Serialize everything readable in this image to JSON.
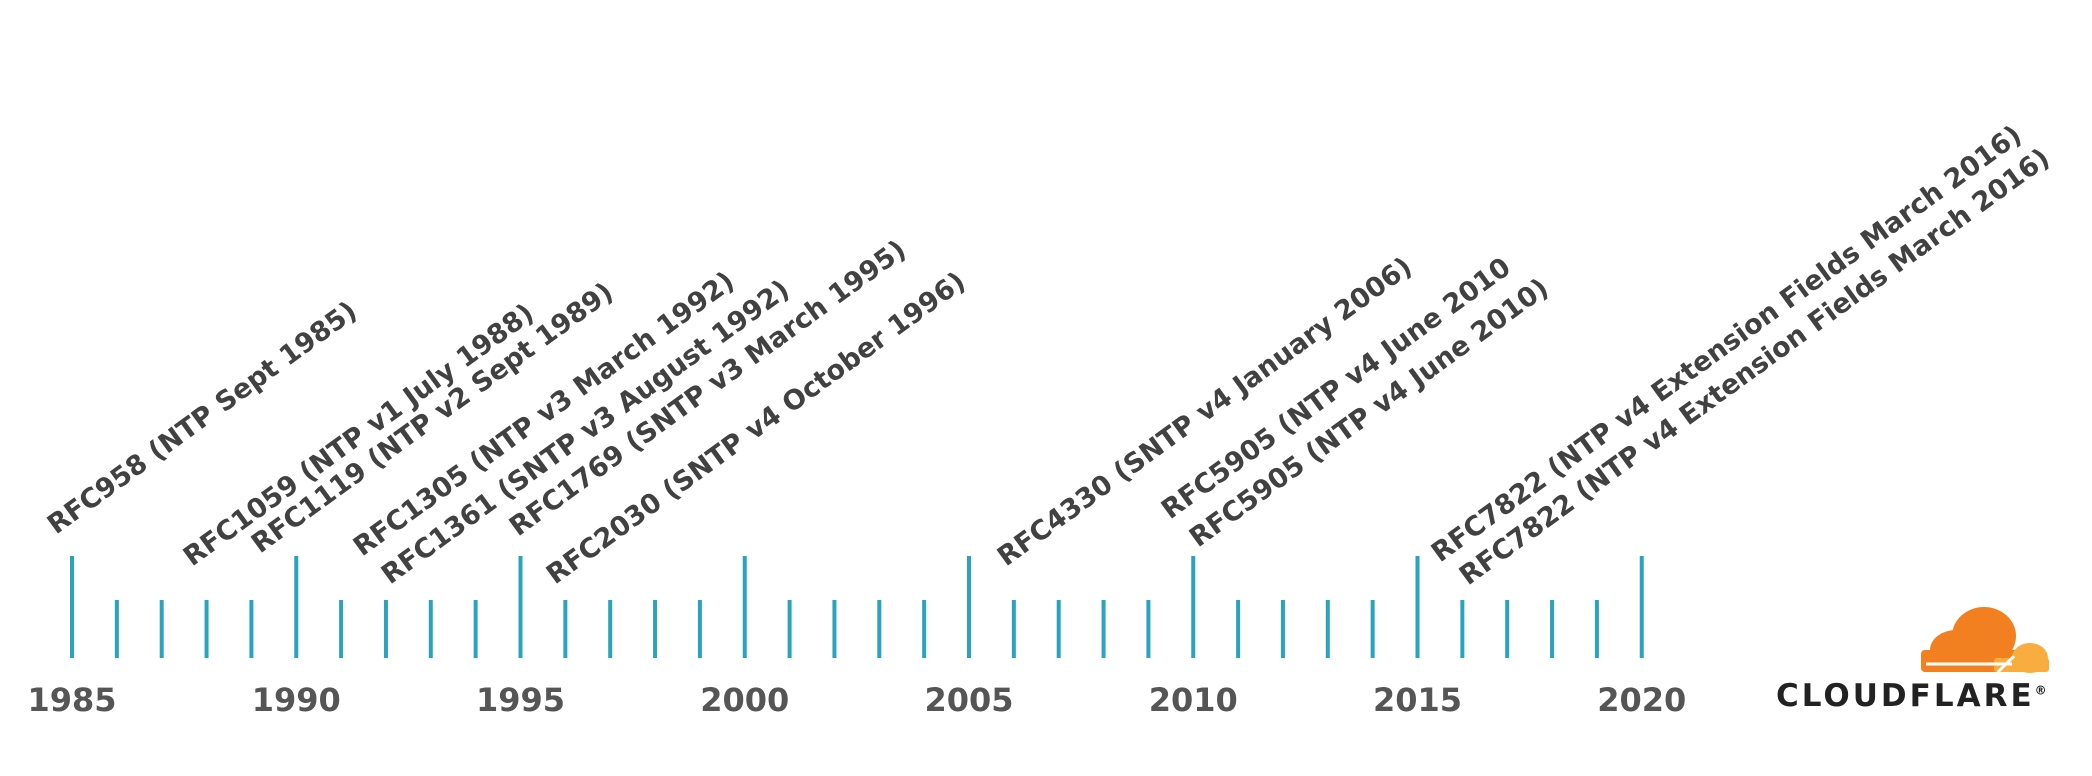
{
  "timeline": {
    "start_year": 1985,
    "end_year": 2020,
    "major_tick_every": 5,
    "year_labels": [
      "1985",
      "1990",
      "1995",
      "2000",
      "2005",
      "2010",
      "2015",
      "2020"
    ],
    "events": [
      {
        "year": 1985,
        "label": "RFC958 (NTP Sept 1985)"
      },
      {
        "year": 1988,
        "label": "RFC1059 (NTP v1 July 1988)"
      },
      {
        "year": 1989,
        "label": "RFC1119 (NTP v2 Sept 1989)"
      },
      {
        "year": 1992,
        "label": "RFC1305 (NTP v3 March 1992)"
      },
      {
        "year": 1992,
        "label": "RFC1361 (SNTP v3 August 1992)"
      },
      {
        "year": 1995,
        "label": "RFC1769 (SNTP v3 March 1995)"
      },
      {
        "year": 1996,
        "label": "RFC2030 (SNTP v4 October 1996)"
      },
      {
        "year": 2006,
        "label": "RFC4330 (SNTP v4 January 2006)"
      },
      {
        "year": 2010,
        "label": "RFC5905 (NTP v4 June 2010"
      },
      {
        "year": 2010,
        "label": "RFC5905 (NTP v4 June 2010)"
      },
      {
        "year": 2016,
        "label": "RFC7822 (NTP v4 Extension Fields March 2016)"
      },
      {
        "year": 2016,
        "label": "RFC7822 (NTP v4 Extension Fields March 2016)"
      }
    ]
  },
  "logo": {
    "text": "CLOUDFLARE",
    "mark": "®"
  },
  "colors": {
    "tick": "#2aa3bf",
    "text": "#414141",
    "year_text": "#555555",
    "logo_orange": "#f38020",
    "logo_light_orange": "#faad3f",
    "logo_text": "#222222"
  }
}
